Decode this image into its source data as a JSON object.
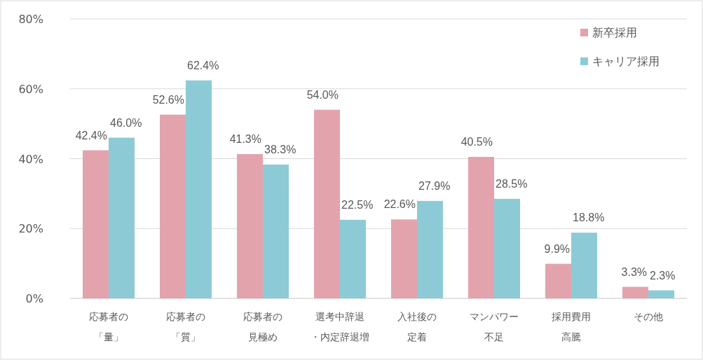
{
  "chart_data": {
    "type": "bar",
    "categories": [
      "応募者の「量」",
      "応募者の「質」",
      "応募者の見極め",
      "選考中辞退・内定辞退増",
      "入社後の定着",
      "マンパワー不足",
      "採用費用高騰",
      "その他"
    ],
    "series": [
      {
        "name": "新卒採用",
        "color": "#e3a3ad",
        "values": [
          42.4,
          52.6,
          41.3,
          54.0,
          22.6,
          40.5,
          9.9,
          3.3
        ],
        "value_labels": [
          "42.4%",
          "52.6%",
          "41.3%",
          "54.0%",
          "22.6%",
          "40.5%",
          "9.9%",
          "3.3%"
        ]
      },
      {
        "name": "キャリア採用",
        "color": "#8ccbd6",
        "values": [
          46.0,
          62.4,
          38.3,
          22.5,
          27.9,
          28.5,
          18.8,
          2.3
        ],
        "value_labels": [
          "46.0%",
          "62.4%",
          "38.3%",
          "22.5%",
          "27.9%",
          "28.5%",
          "18.8%",
          "2.3%"
        ]
      }
    ],
    "ylim": [
      0,
      80
    ],
    "yticks": [
      {
        "value": 0,
        "label": "0%"
      },
      {
        "value": 20,
        "label": "20%"
      },
      {
        "value": 40,
        "label": "40%"
      },
      {
        "value": 60,
        "label": "60%"
      },
      {
        "value": 80,
        "label": "80%"
      }
    ],
    "grid": "y",
    "legend": "top right"
  }
}
